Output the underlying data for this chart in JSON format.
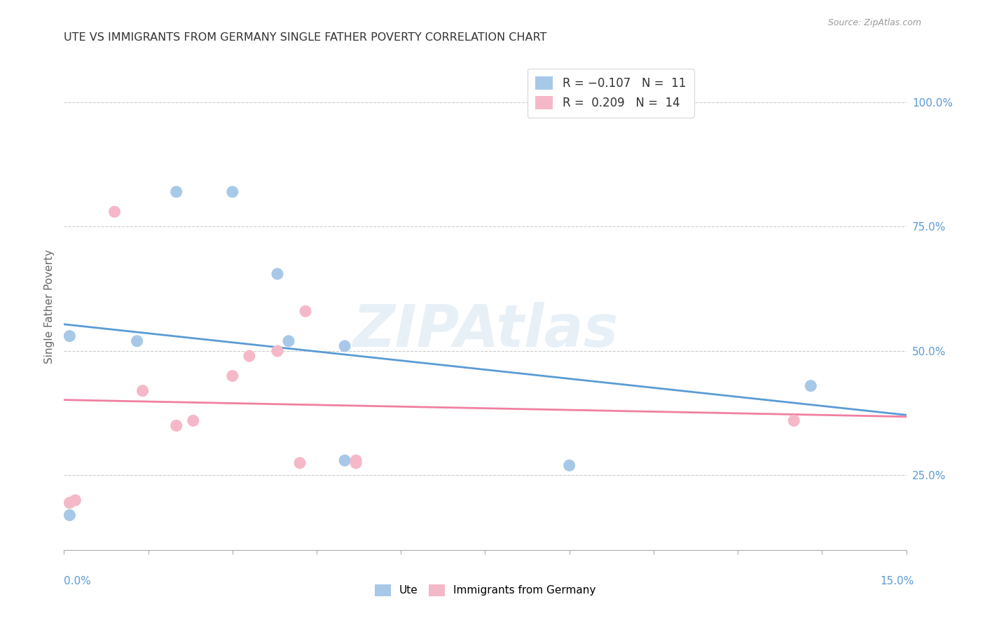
{
  "title": "UTE VS IMMIGRANTS FROM GERMANY SINGLE FATHER POVERTY CORRELATION CHART",
  "source": "Source: ZipAtlas.com",
  "ylabel": "Single Father Poverty",
  "ytick_labels": [
    "25.0%",
    "50.0%",
    "75.0%",
    "100.0%"
  ],
  "ytick_values": [
    0.25,
    0.5,
    0.75,
    1.0
  ],
  "xmin": 0.0,
  "xmax": 0.15,
  "ymin": 0.1,
  "ymax": 1.08,
  "ute_color": "#a8c8e8",
  "germany_color": "#f5b8c8",
  "ute_line_color": "#5b9bd5",
  "germany_line_color": "#f080a0",
  "watermark_text": "ZIPAtlas",
  "ute_x": [
    0.001,
    0.001,
    0.013,
    0.02,
    0.03,
    0.038,
    0.04,
    0.05,
    0.05,
    0.09,
    0.133
  ],
  "ute_y": [
    0.17,
    0.53,
    0.52,
    0.82,
    0.82,
    0.655,
    0.52,
    0.51,
    0.28,
    0.27,
    0.43
  ],
  "germany_x": [
    0.001,
    0.002,
    0.009,
    0.014,
    0.02,
    0.023,
    0.03,
    0.033,
    0.038,
    0.043,
    0.052,
    0.042,
    0.052,
    0.13
  ],
  "germany_y": [
    0.195,
    0.2,
    0.78,
    0.42,
    0.35,
    0.36,
    0.45,
    0.49,
    0.5,
    0.58,
    0.275,
    0.275,
    0.28,
    0.36
  ]
}
